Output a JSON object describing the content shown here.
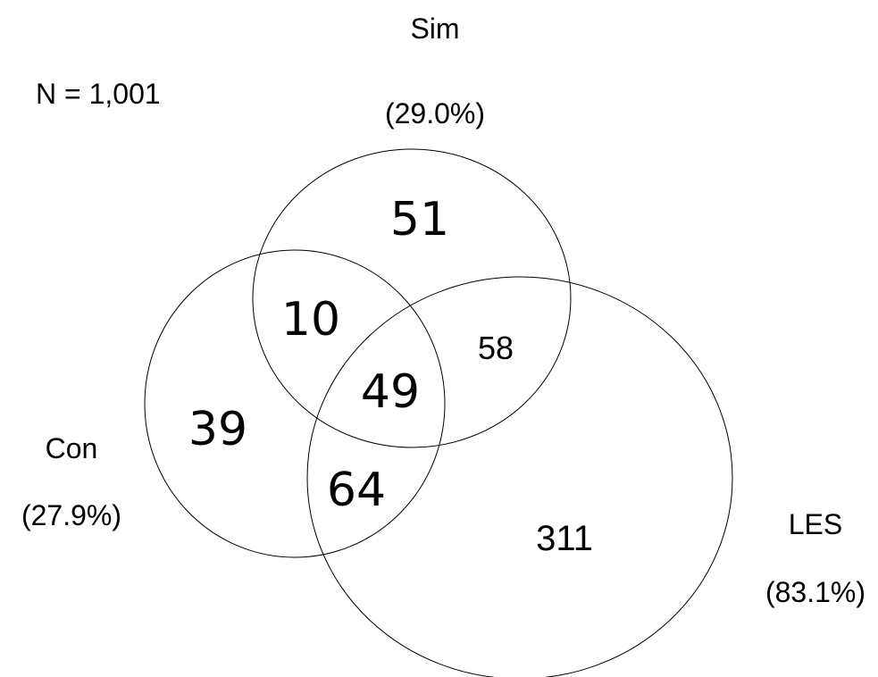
{
  "total_label": "N = 1,001",
  "sets": [
    {
      "key": "sim",
      "name": "Sim",
      "percent": "(29.0%)"
    },
    {
      "key": "con",
      "name": "Con",
      "percent": "(27.9%)"
    },
    {
      "key": "les",
      "name": "LES",
      "percent": "(83.1%)"
    }
  ],
  "regions": {
    "sim_only": "51",
    "con_sim": "10",
    "sim_les": "58",
    "all_three": "49",
    "con_only": "39",
    "con_les": "64",
    "les_only": "311"
  },
  "colors": {
    "stroke": "#000000",
    "text": "#000000",
    "background": "#ffffff"
  }
}
